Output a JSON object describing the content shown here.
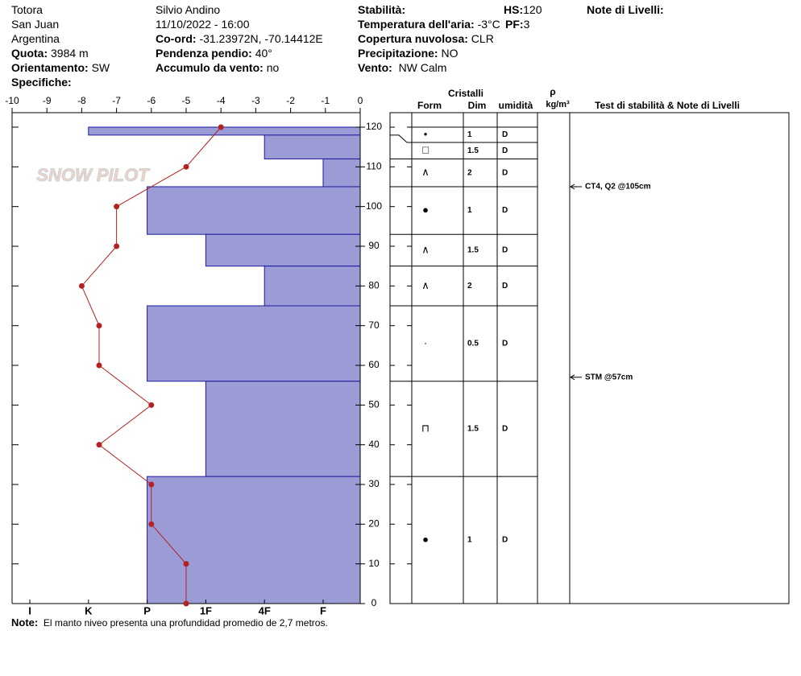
{
  "header": {
    "place": [
      "Totora",
      "San Juan",
      "Argentina"
    ],
    "elevation": {
      "label": "Quota:",
      "value": "3984 m"
    },
    "aspect": {
      "label": "Orientamento:",
      "value": "SW"
    },
    "specifics": {
      "label": "Specifiche:"
    },
    "observer": "Silvio Andino",
    "datetime": "11/10/2022 - 16:00",
    "coords": {
      "label": "Co-ord:",
      "value": "-31.23972N, -70.14412E"
    },
    "slope": {
      "label": "Pendenza pendio:",
      "value": "40°"
    },
    "wind_loading": {
      "label": "Accumulo da vento:",
      "value": "no"
    },
    "stability": {
      "label": "Stabilità:"
    },
    "air_temp": {
      "label": "Temperatura dell'aria:",
      "value": "-3°C"
    },
    "sky": {
      "label": "Copertura nuvolosa:",
      "value": "CLR"
    },
    "precip": {
      "label": "Precipitazione:",
      "value": "NO"
    },
    "wind": {
      "label": "Vento:",
      "value": "NW Calm"
    },
    "hs": {
      "label": "HS:",
      "value": "120"
    },
    "pf": {
      "label": "PF:",
      "value": "3"
    },
    "layer_notes": "Note di Livelli:"
  },
  "logo": "SNOW PILOT",
  "profile": {
    "temperature": {
      "xlim": [
        -10,
        0
      ],
      "xticks": [
        -10,
        -9,
        -8,
        -7,
        -6,
        -5,
        -4,
        -3,
        -2,
        -1,
        0
      ],
      "heights": [
        120,
        110,
        100,
        90,
        80,
        70,
        60,
        50,
        40,
        30,
        20,
        10,
        0
      ],
      "temps": [
        -4,
        -5,
        -7,
        -7,
        -8,
        -7.5,
        -7.5,
        -6,
        -7.5,
        -6,
        -6,
        -5,
        -5
      ],
      "color": "#b22222"
    },
    "height": {
      "ylim": [
        0,
        120
      ],
      "yticks": [
        0,
        10,
        20,
        30,
        40,
        50,
        60,
        70,
        80,
        90,
        100,
        110,
        120
      ]
    },
    "hardness_scale": [
      "I",
      "K",
      "P",
      "1F",
      "4F",
      "F"
    ],
    "bar_color": "#9b9bd6",
    "layers": [
      {
        "top": 120,
        "bottom": 118,
        "hardness": "K",
        "form": "•",
        "dim": "1",
        "moisture": "D"
      },
      {
        "top": 118,
        "bottom": 112,
        "hardness": "4F",
        "form": "□",
        "dim": "1.5",
        "moisture": "D"
      },
      {
        "top": 112,
        "bottom": 105,
        "hardness": "F",
        "form": "∧",
        "dim": "2",
        "moisture": "D"
      },
      {
        "top": 105,
        "bottom": 93,
        "hardness": "P",
        "form": "●",
        "dim": "1",
        "moisture": "D"
      },
      {
        "top": 93,
        "bottom": 85,
        "hardness": "1F",
        "form": "∧",
        "dim": "1.5",
        "moisture": "D"
      },
      {
        "top": 85,
        "bottom": 75,
        "hardness": "4F",
        "form": "∧",
        "dim": "2",
        "moisture": "D"
      },
      {
        "top": 75,
        "bottom": 56,
        "hardness": "P",
        "form": "·",
        "dim": "0.5",
        "moisture": "D"
      },
      {
        "top": 56,
        "bottom": 32,
        "hardness": "1F",
        "form": "⊓",
        "dim": "1.5",
        "moisture": "D"
      },
      {
        "top": 32,
        "bottom": 0,
        "hardness": "P",
        "form": "●",
        "dim": "1",
        "moisture": "D"
      }
    ]
  },
  "table": {
    "crystals": "Cristalli",
    "form": "Form",
    "dim": "Dim",
    "moisture": "umidità",
    "rho": "ρ",
    "rho_unit": "kg/m³",
    "tests": "Test di stabilità & Note di Livelli"
  },
  "tests": [
    {
      "height": 105,
      "text": "CT4, Q2 @105cm"
    },
    {
      "height": 57,
      "text": "STM @57cm"
    }
  ],
  "note": {
    "label": "Note:",
    "text": "El manto niveo presenta una profundidad promedio de 2,7 metros."
  }
}
